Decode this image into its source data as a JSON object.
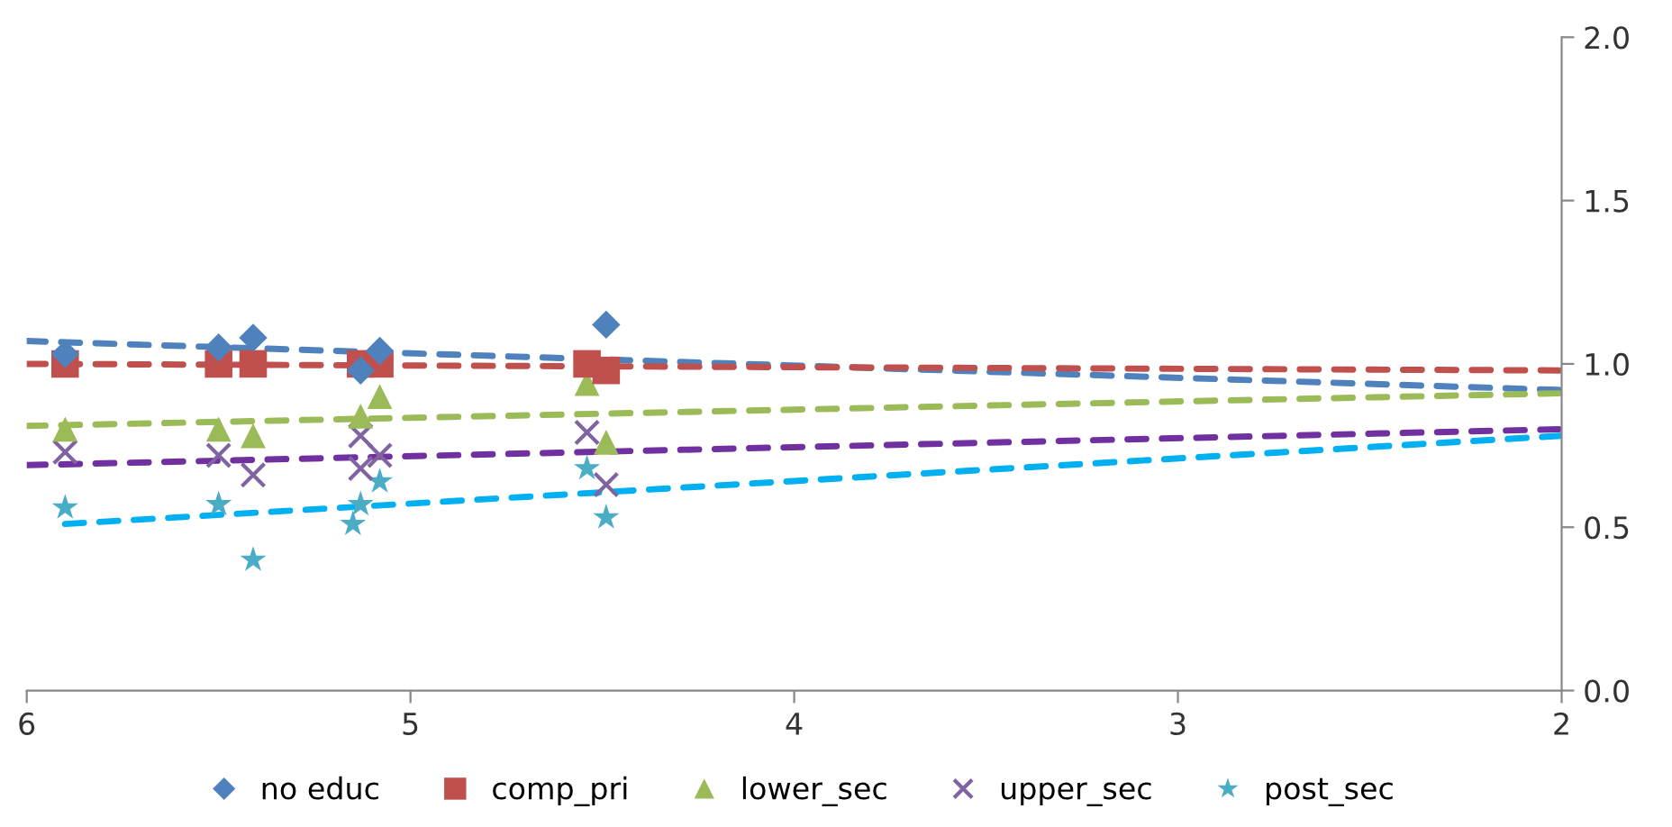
{
  "chart_data": {
    "type": "scatter",
    "xlim": [
      6,
      2
    ],
    "xticks": [
      6,
      5,
      4,
      3,
      2
    ],
    "ylim": [
      0,
      2
    ],
    "yticks": [
      {
        "value": 0,
        "label": "0.0"
      },
      {
        "value": 0.5,
        "label": "0.5"
      },
      {
        "value": 1,
        "label": "1.0"
      },
      {
        "value": 1.5,
        "label": "1.5"
      },
      {
        "value": 2,
        "label": "2.0"
      }
    ],
    "grid": false,
    "legend": "bottom",
    "series": [
      {
        "name": "no educ",
        "marker": "diamond",
        "color": "#4f81bd",
        "x": [
          5.9,
          5.5,
          5.41,
          5.13,
          5.08,
          4.54,
          4.49
        ],
        "values": [
          1.03,
          1.05,
          1.08,
          0.98,
          1.04,
          null,
          1.12
        ]
      },
      {
        "name": "comp_pri",
        "marker": "square",
        "color": "#c0504d",
        "x": [
          5.9,
          5.5,
          5.41,
          5.13,
          5.08,
          4.54,
          4.49
        ],
        "values": [
          1.0,
          1.0,
          1.0,
          1.0,
          1.0,
          1.0,
          0.98
        ]
      },
      {
        "name": "lower_sec",
        "marker": "triangle",
        "color": "#9bbb59",
        "x": [
          5.9,
          5.5,
          5.41,
          5.13,
          5.08,
          4.54,
          4.49
        ],
        "values": [
          0.8,
          0.8,
          0.78,
          0.84,
          0.9,
          0.94,
          0.76
        ]
      },
      {
        "name": "upper_sec",
        "marker": "cross",
        "color": "#8064a2",
        "x": [
          5.9,
          5.5,
          5.41,
          5.13,
          5.13,
          5.08,
          4.54,
          4.49
        ],
        "values": [
          0.73,
          0.72,
          0.66,
          0.78,
          0.68,
          0.72,
          0.79,
          0.63
        ]
      },
      {
        "name": "post_sec",
        "marker": "star",
        "color": "#4bacc6",
        "x": [
          5.9,
          5.5,
          5.41,
          5.15,
          5.13,
          5.08,
          4.54,
          4.49
        ],
        "values": [
          0.56,
          0.57,
          0.4,
          0.51,
          0.57,
          0.64,
          0.68,
          0.53
        ]
      },
      {
        "type": "line",
        "line_style": "dashed",
        "marker": "none",
        "color": "#4f81bd",
        "x": [
          6,
          2
        ],
        "values": [
          1.07,
          0.92
        ]
      },
      {
        "type": "line",
        "line_style": "dashed",
        "marker": "none",
        "color": "#c0504d",
        "x": [
          6,
          2
        ],
        "values": [
          1.0,
          0.98
        ]
      },
      {
        "type": "line",
        "line_style": "dashed",
        "marker": "none",
        "color": "#9bbb59",
        "x": [
          6,
          2
        ],
        "values": [
          0.81,
          0.91
        ]
      },
      {
        "type": "line",
        "line_style": "dashed",
        "marker": "none",
        "color": "#7030a0",
        "x": [
          6,
          2
        ],
        "values": [
          0.69,
          0.8
        ]
      },
      {
        "type": "line",
        "line_style": "dashed",
        "marker": "none",
        "color": "#00b0f0",
        "x": [
          5.9,
          2
        ],
        "values": [
          0.51,
          0.78
        ]
      }
    ]
  }
}
